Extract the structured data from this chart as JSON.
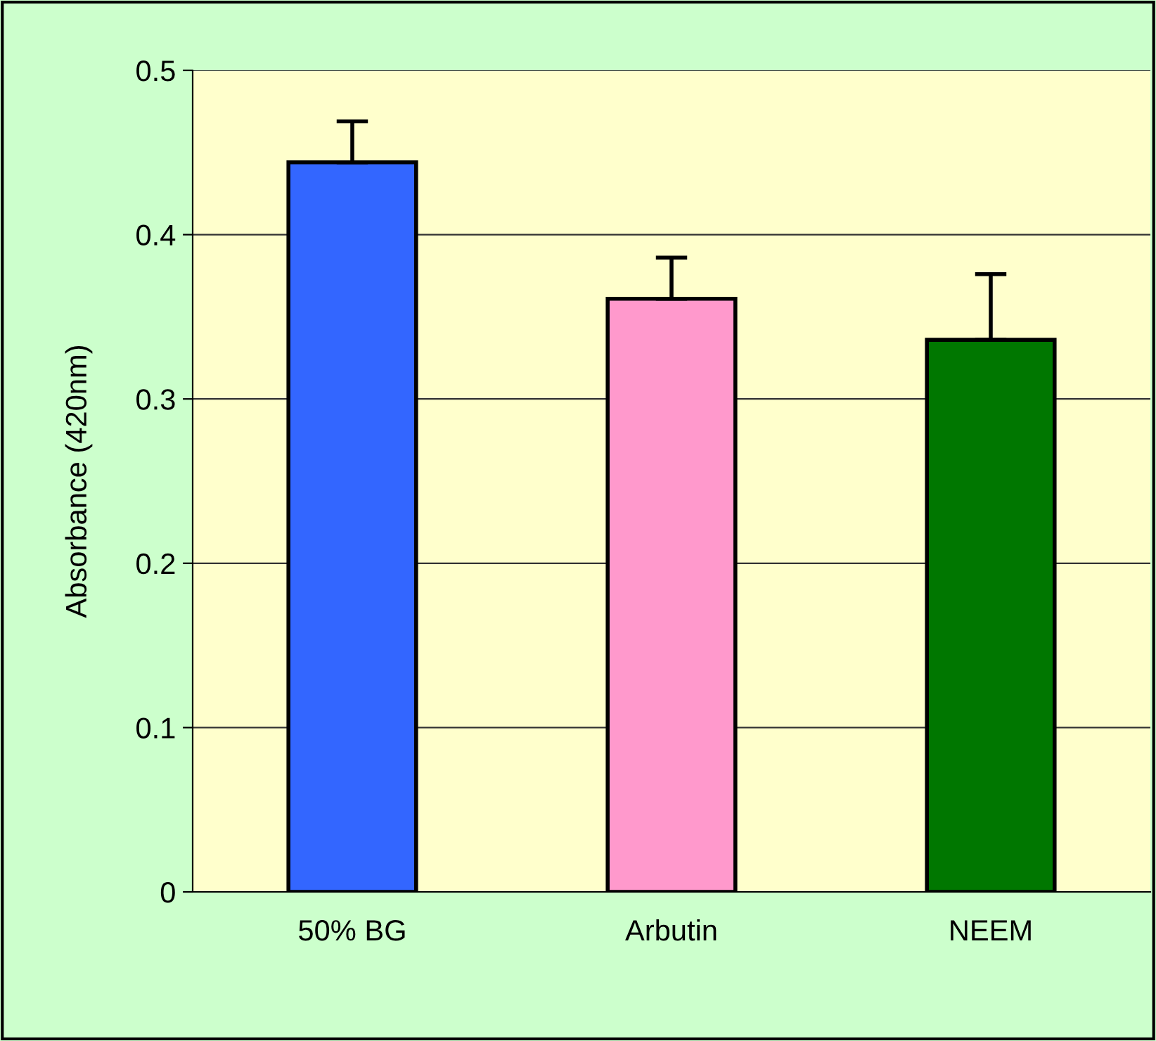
{
  "chart_data": {
    "type": "bar",
    "ylabel": "Absorbance (420nm)",
    "categories": [
      "50% BG",
      "Arbutin",
      "NEEM"
    ],
    "values": [
      0.444,
      0.361,
      0.336
    ],
    "colors": [
      "#3366ff",
      "#ff99cc",
      "#007700"
    ],
    "errors": [
      [
        0.444,
        0.469
      ],
      [
        0.361,
        0.386
      ],
      [
        0.336,
        0.376
      ]
    ],
    "ylim": [
      0,
      0.5
    ],
    "yticks": [
      0,
      0.1,
      0.2,
      0.3,
      0.4,
      0.5
    ],
    "grid": "y",
    "legend": false
  }
}
